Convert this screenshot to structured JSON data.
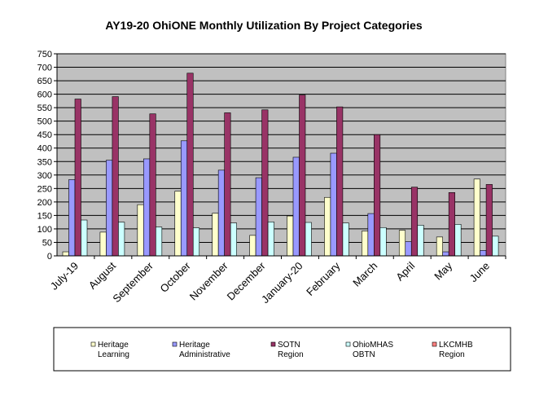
{
  "chart_data": {
    "type": "bar",
    "title": "AY19-20  OhiONE Monthly Utilization By Project Categories",
    "xlabel": "",
    "ylabel": "",
    "ylim": [
      0,
      750
    ],
    "ytick_step": 50,
    "grid": true,
    "legend_position": "bottom",
    "categories": [
      "July-19",
      "August",
      "September",
      "October",
      "November",
      "December",
      "January-20",
      "February",
      "March",
      "April",
      "May",
      "June"
    ],
    "series": [
      {
        "name_line1": "Heritage",
        "name_line2": "Learning",
        "color": "#FFFFCC",
        "values": [
          15,
          88,
          190,
          240,
          158,
          76,
          148,
          217,
          92,
          95,
          70,
          285
        ]
      },
      {
        "name_line1": "Heritage",
        "name_line2": "Administrative",
        "color": "#9999FF",
        "values": [
          283,
          355,
          360,
          427,
          318,
          290,
          366,
          381,
          157,
          53,
          15,
          20
        ]
      },
      {
        "name_line1": "SOTN",
        "name_line2": "Region",
        "color": "#993366",
        "values": [
          582,
          591,
          527,
          678,
          531,
          542,
          597,
          553,
          450,
          255,
          235,
          265
        ]
      },
      {
        "name_line1": "OhioMHAS",
        "name_line2": "OBTN",
        "color": "#CCFFFF",
        "values": [
          133,
          125,
          107,
          104,
          122,
          126,
          124,
          122,
          105,
          114,
          117,
          73
        ]
      },
      {
        "name_line1": "LKCMHB",
        "name_line2": "Region",
        "color": "#FF8080",
        "values": [
          0,
          0,
          0,
          0,
          0,
          0,
          0,
          0,
          0,
          0,
          0,
          0
        ]
      }
    ]
  }
}
